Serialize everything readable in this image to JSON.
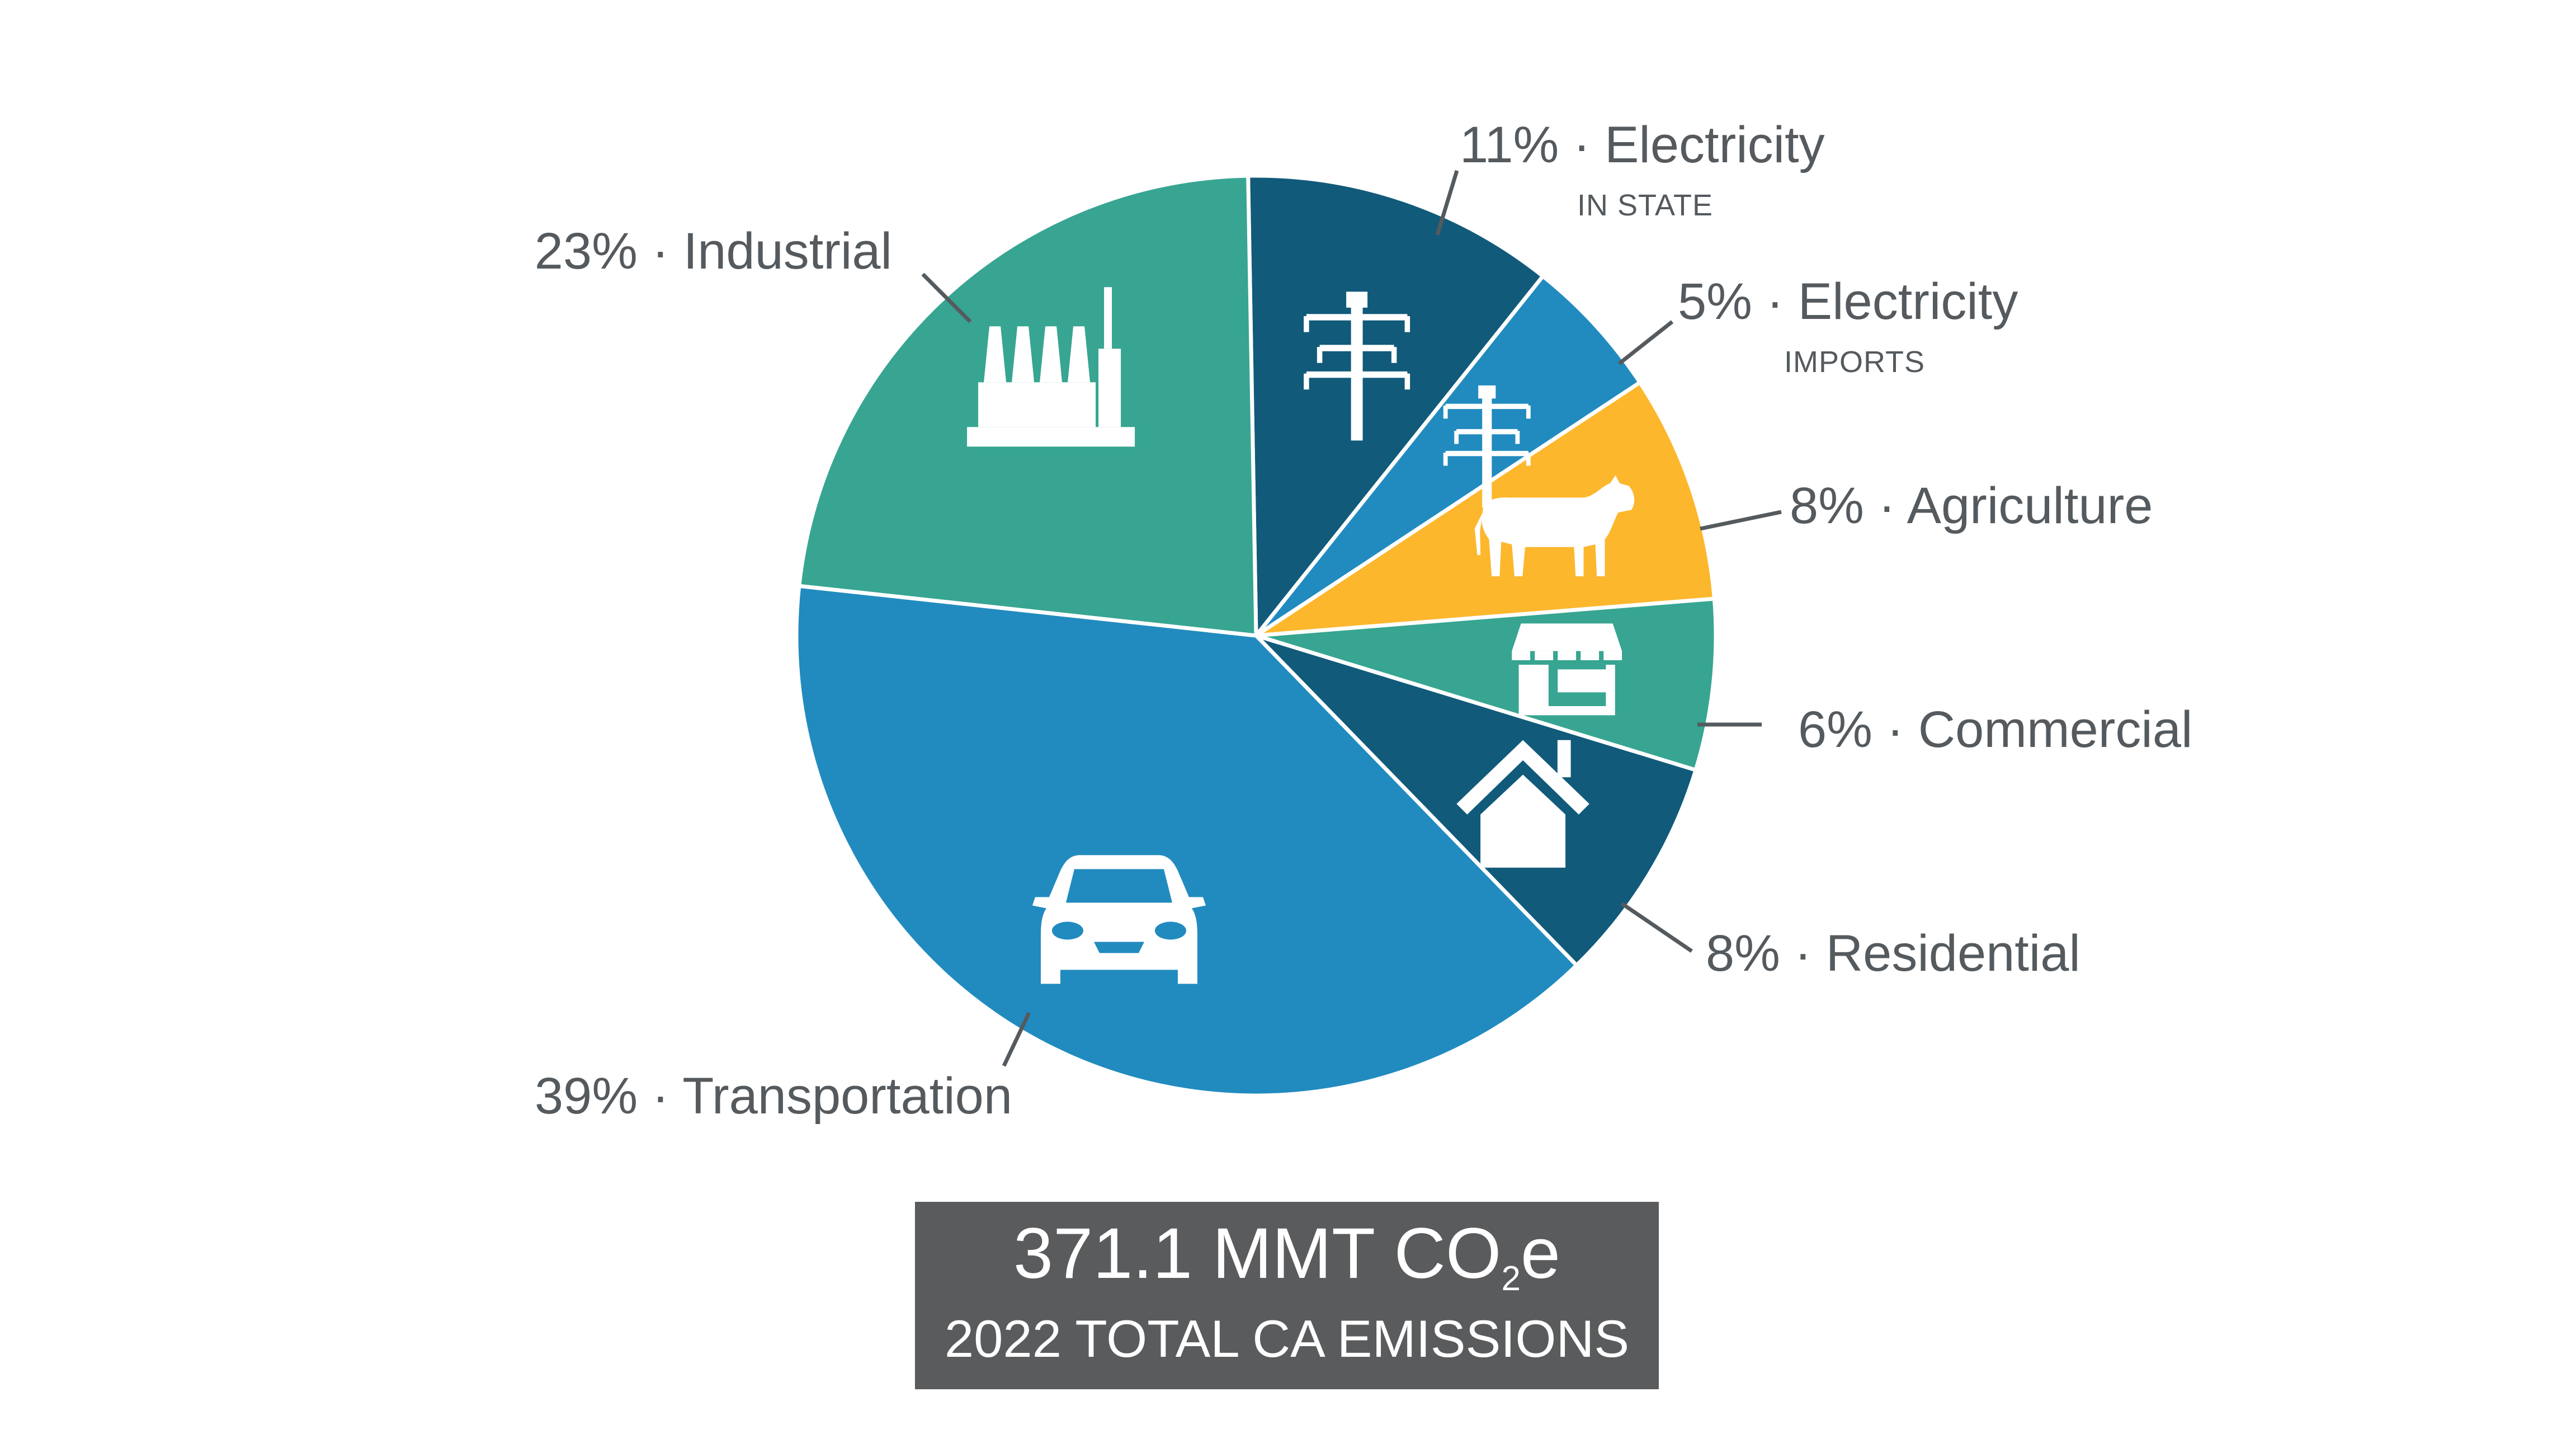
{
  "chart_data": {
    "type": "pie",
    "start_angle_deg": -1,
    "slices": [
      {
        "label": "Electricity",
        "sublabel": "IN STATE",
        "percent": 11,
        "color": "#115a7a",
        "icon": "power-tower-icon",
        "value_label": "11%"
      },
      {
        "label": "Electricity",
        "sublabel": "IMPORTS",
        "percent": 5,
        "color": "#218bbf",
        "icon": "power-tower-icon",
        "value_label": "5%"
      },
      {
        "label": "Agriculture",
        "sublabel": "",
        "percent": 8,
        "color": "#fcb72d",
        "icon": "cow-icon",
        "value_label": "8%"
      },
      {
        "label": "Commercial",
        "sublabel": "",
        "percent": 6,
        "color": "#37a591",
        "icon": "storefront-icon",
        "value_label": "6%"
      },
      {
        "label": "Residential",
        "sublabel": "",
        "percent": 8,
        "color": "#115a7a",
        "icon": "house-icon",
        "value_label": "8%"
      },
      {
        "label": "Transportation",
        "sublabel": "",
        "percent": 39,
        "color": "#218bbf",
        "icon": "car-icon",
        "value_label": "39%"
      },
      {
        "label": "Industrial",
        "sublabel": "",
        "percent": 23,
        "color": "#37a591",
        "icon": "factory-icon",
        "value_label": "23%"
      }
    ],
    "separator": "·"
  },
  "total": {
    "value": "371.1 MMT CO",
    "value_sub": "2",
    "value_suffix": "e",
    "caption": "2022 TOTAL CA EMISSIONS"
  }
}
